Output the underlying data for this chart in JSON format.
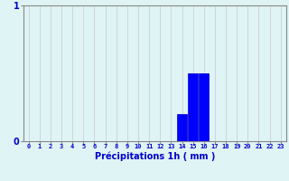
{
  "hours": [
    0,
    1,
    2,
    3,
    4,
    5,
    6,
    7,
    8,
    9,
    10,
    11,
    12,
    13,
    14,
    15,
    16,
    17,
    18,
    19,
    20,
    21,
    22,
    23
  ],
  "values": [
    0,
    0,
    0,
    0,
    0,
    0,
    0,
    0,
    0,
    0,
    0,
    0,
    0,
    0,
    0.2,
    0.5,
    0.5,
    0,
    0,
    0,
    0,
    0,
    0,
    0
  ],
  "ylim": [
    0,
    1
  ],
  "xlim": [
    -0.5,
    23.5
  ],
  "xlabel": "Précipitations 1h ( mm )",
  "yticks": [
    0,
    1
  ],
  "xticks": [
    0,
    1,
    2,
    3,
    4,
    5,
    6,
    7,
    8,
    9,
    10,
    11,
    12,
    13,
    14,
    15,
    16,
    17,
    18,
    19,
    20,
    21,
    22,
    23
  ],
  "bar_color": "#0000ff",
  "bar_edge_color": "#0000cc",
  "background_color": "#dff4f4",
  "grid_color_v": "#c8c8d8",
  "grid_color_h": "#ffaaaa",
  "label_color": "#0000cc",
  "axis_color": "#888888",
  "tick_color": "#0000cc",
  "bar_width": 0.9
}
